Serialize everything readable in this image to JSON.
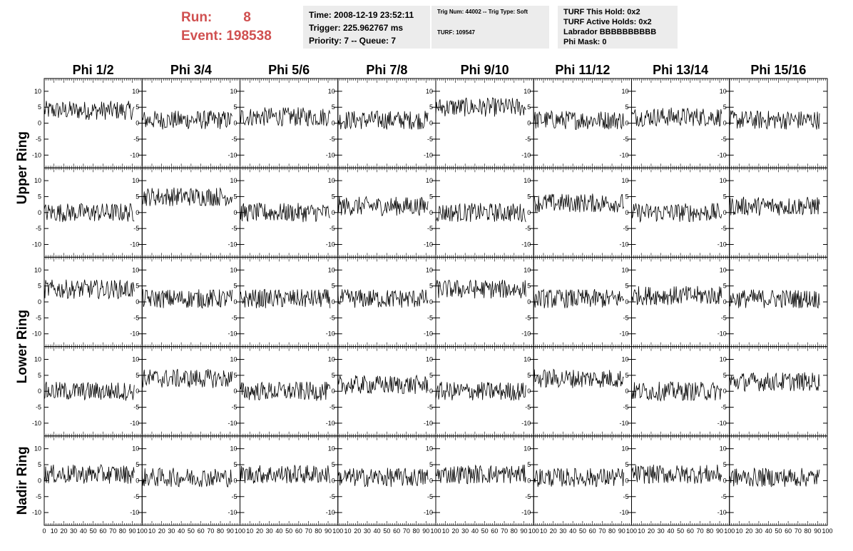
{
  "header": {
    "run_label": "Run:",
    "run_value": "8",
    "event_label": "Event:",
    "event_value": "198538"
  },
  "info_boxes": {
    "time_line": "Time: 2008-12-19 23:52:11",
    "trigger_line": "Trigger: 225.962767 ms",
    "priority_line": "Priority: 7 -- Queue: 7",
    "trig_line": "Trig Num: 44002 -- Trig Type: Soft",
    "turf_line": "TURF: 109547",
    "turf_hold_line": "TURF This Hold: 0x2",
    "turf_active_line": "TURF Active Holds: 0x2",
    "labrador_line": "Labrador BBBBBBBBBB",
    "phi_mask_line": "Phi Mask: 0"
  },
  "chart_data": {
    "type": "line",
    "columns": [
      "Phi 1/2",
      "Phi 3/4",
      "Phi 5/6",
      "Phi 7/8",
      "Phi 9/10",
      "Phi 11/12",
      "Phi 13/14",
      "Phi 15/16"
    ],
    "row_groups": [
      {
        "label": "Upper Ring",
        "rows": 2
      },
      {
        "label": "Lower Ring",
        "rows": 2
      },
      {
        "label": "Nadir Ring",
        "rows": 1
      }
    ],
    "xlim": [
      0,
      100
    ],
    "ylim": [
      -14,
      14
    ],
    "y_ticks": [
      -10,
      -5,
      0,
      5,
      10
    ],
    "x_ticks": [
      0,
      10,
      20,
      30,
      40,
      50,
      60,
      70,
      80,
      90,
      100
    ],
    "samples": 128,
    "x_range": [
      0,
      92
    ],
    "waveform_baselines": [
      [
        4,
        1,
        2,
        1,
        5,
        1,
        2,
        1
      ],
      [
        0,
        5,
        0,
        2,
        0,
        3,
        0,
        2
      ],
      [
        4,
        1,
        1,
        1,
        4,
        1,
        2,
        1
      ],
      [
        0,
        4,
        0,
        2,
        0,
        4,
        0,
        3
      ],
      [
        2,
        1,
        2,
        1,
        2,
        1,
        2,
        1
      ]
    ],
    "waveform_amplitude": 3,
    "grid": false,
    "legend": "none"
  }
}
